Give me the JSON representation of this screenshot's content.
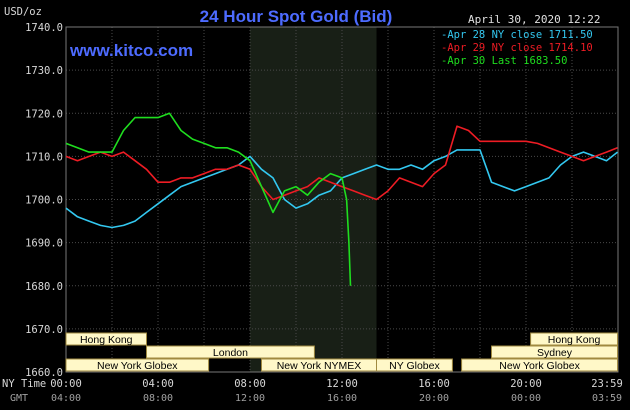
{
  "header": {
    "title": "24 Hour Spot Gold (Bid)",
    "site": "www.kitco.com",
    "date_time": "April 30, 2020 12:22",
    "y_unit": "USD/oz"
  },
  "chart_data": {
    "type": "line",
    "title": "24 Hour Spot Gold (Bid)",
    "ylabel": "USD/oz",
    "ylim": [
      1660,
      1740
    ],
    "yticks": [
      "1740.0",
      "1730.0",
      "1720.0",
      "1710.0",
      "1700.0",
      "1690.0",
      "1680.0",
      "1670.0",
      "1660.0"
    ],
    "xlim": [
      0,
      24
    ],
    "x_unit": "hours (NY Time)",
    "ny_time_label": "NY Time",
    "gmt_label": "GMT",
    "ny_ticks": [
      "00:00",
      "04:00",
      "08:00",
      "12:00",
      "16:00",
      "20:00",
      "23:59"
    ],
    "gmt_ticks": [
      "04:00",
      "08:00",
      "12:00",
      "16:00",
      "20:00",
      "00:00",
      "03:59"
    ],
    "highlight_range": [
      8,
      13.5
    ],
    "grid": true,
    "legend_position": "top-right",
    "series": [
      {
        "name": "Apr 28 NY close 1711.50",
        "color": "#33c8f0",
        "x": [
          0,
          0.5,
          1,
          1.5,
          2,
          2.5,
          3,
          3.5,
          4,
          4.5,
          5,
          5.5,
          6,
          6.5,
          7,
          7.5,
          8,
          8.5,
          9,
          9.5,
          10,
          10.5,
          11,
          11.5,
          12,
          12.5,
          13,
          13.5,
          14,
          14.5,
          15,
          15.5,
          16,
          16.5,
          17,
          17.5,
          18,
          18.5,
          19,
          19.5,
          20,
          20.5,
          21,
          21.5,
          22,
          22.5,
          23,
          23.5,
          23.98
        ],
        "y": [
          1698,
          1696,
          1695,
          1694,
          1693.5,
          1694,
          1695,
          1697,
          1699,
          1701,
          1703,
          1704,
          1705,
          1706,
          1707,
          1708,
          1710,
          1707,
          1705,
          1700,
          1698,
          1699,
          1701,
          1702,
          1705,
          1706,
          1707,
          1708,
          1707,
          1707,
          1708,
          1707,
          1709,
          1710,
          1711.5,
          1711.5,
          1711.5,
          1704,
          1703,
          1702,
          1703,
          1704,
          1705,
          1708,
          1710,
          1711,
          1710,
          1709,
          1711
        ]
      },
      {
        "name": "Apr 29 NY close 1714.10",
        "color": "#ee1c24",
        "x": [
          0,
          0.5,
          1,
          1.5,
          2,
          2.5,
          3,
          3.5,
          4,
          4.5,
          5,
          5.5,
          6,
          6.5,
          7,
          7.5,
          8,
          8.5,
          9,
          9.5,
          10,
          10.5,
          11,
          11.5,
          12,
          12.5,
          13,
          13.5,
          14,
          14.5,
          15,
          15.5,
          16,
          16.5,
          17,
          17.5,
          18,
          18.5,
          19,
          19.5,
          20,
          20.5,
          21,
          21.5,
          22,
          22.5,
          23,
          23.5,
          23.98
        ],
        "y": [
          1710,
          1709,
          1710,
          1711,
          1710,
          1711,
          1709,
          1707,
          1704,
          1704,
          1705,
          1705,
          1706,
          1707,
          1707,
          1708,
          1707,
          1703,
          1700,
          1701,
          1702,
          1703,
          1705,
          1704,
          1703,
          1702,
          1701,
          1700,
          1702,
          1705,
          1704,
          1703,
          1706,
          1708,
          1717,
          1716,
          1713.5,
          1713.5,
          1713.5,
          1713.5,
          1713.5,
          1713,
          1712,
          1711,
          1710,
          1709,
          1710,
          1711,
          1712
        ]
      },
      {
        "name": "Apr 30 Last 1683.50",
        "color": "#1fde1f",
        "x": [
          0,
          0.5,
          1,
          1.5,
          2,
          2.5,
          3,
          3.5,
          4,
          4.5,
          5,
          5.5,
          6,
          6.5,
          7,
          7.5,
          8,
          8.5,
          9,
          9.5,
          10,
          10.5,
          11,
          11.5,
          12,
          12.2,
          12.3,
          12.37
        ],
        "y": [
          1713,
          1712,
          1711,
          1711,
          1711,
          1716,
          1719,
          1719,
          1719,
          1720,
          1716,
          1714,
          1713,
          1712,
          1712,
          1711,
          1709,
          1703,
          1697,
          1702,
          1703,
          1701,
          1704,
          1706,
          1705,
          1700,
          1690,
          1680
        ]
      }
    ],
    "markets": [
      {
        "label": "Hong Kong",
        "start": 0,
        "end": 3.5
      },
      {
        "label": "London",
        "start": 3.5,
        "end": 10.8
      },
      {
        "label": "New York Globex",
        "start": 0,
        "end": 6.2
      },
      {
        "label": "New York NYMEX",
        "start": 8.5,
        "end": 13.5
      },
      {
        "label": "NY Globex",
        "start": 13.5,
        "end": 16.8
      },
      {
        "label": "Hong Kong",
        "start": 20.2,
        "end": 23.98
      },
      {
        "label": "Sydney",
        "start": 18.5,
        "end": 23.98
      },
      {
        "label": "New York Globex",
        "start": 17.2,
        "end": 23.98
      }
    ],
    "colors": {
      "background": "#000000",
      "plot": "#000000",
      "highlight": "#181f16",
      "grid": "#4a4a4a",
      "market_bar": "#fff8c8",
      "market_edge": "#a08a40"
    }
  }
}
